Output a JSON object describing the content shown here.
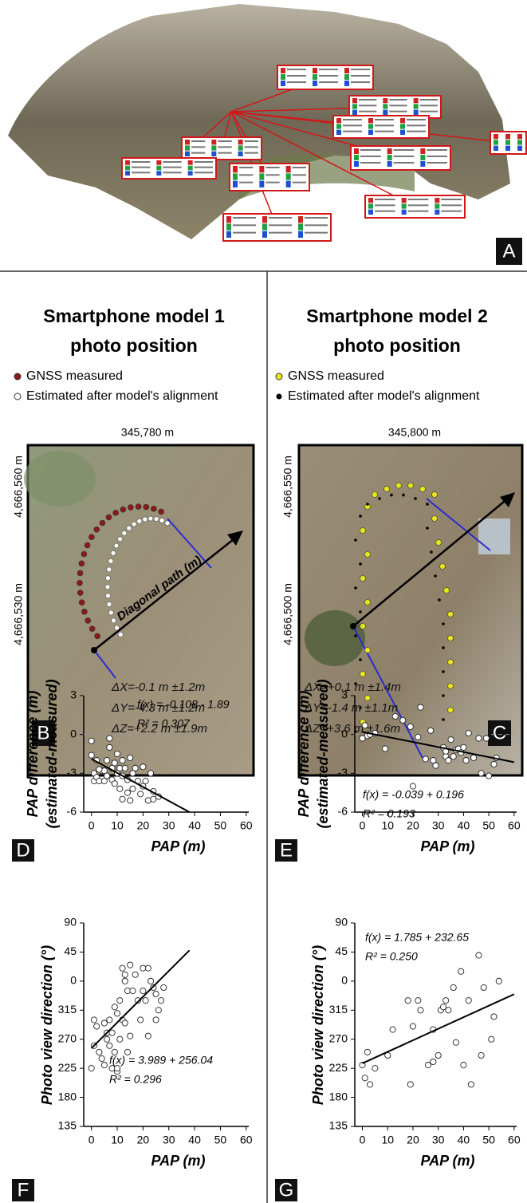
{
  "panel_a": {
    "label": "A"
  },
  "panel_b": {
    "title": [
      "Smartphone model 1",
      "photo position"
    ],
    "legend": [
      {
        "name": "GNSS measured",
        "color": "#8b1a1a"
      },
      {
        "name": "Estimated after model's alignment",
        "color": "#ffffff"
      }
    ],
    "x_label": "345,780 m",
    "y_labels": [
      "4,666,560 m",
      "4,666,530 m"
    ],
    "path_label": "Diagonal path (m)",
    "annotations": [
      "ΔX=-0.1 m ±1.2m",
      "ΔY=-4.3 m ±1.2m",
      "ΔZ=+2.2 m ±1.9m"
    ],
    "label": "B"
  },
  "panel_c": {
    "title": [
      "Smartphone model 2",
      "photo position"
    ],
    "legend": [
      {
        "name": "GNSS measured",
        "color": "#e6e619"
      },
      {
        "name": "Estimated after model's alignment",
        "color": "#000000"
      }
    ],
    "x_label": "345,800 m",
    "y_labels": [
      "4,666,550 m",
      "4,666,500 m"
    ],
    "annotations": [
      "ΔX=+0.1 m ±1.4m",
      "ΔY=-1.4 m ±1.1m",
      "ΔZ=+3.6 m ±1.6m"
    ],
    "label": "C"
  },
  "chart_data": [
    {
      "type": "scatter",
      "panel_label": "D",
      "x": [
        0,
        0,
        1,
        1,
        2,
        2,
        3,
        4,
        5,
        6,
        6,
        7,
        7,
        8,
        8,
        9,
        9,
        10,
        10,
        11,
        11,
        12,
        12,
        13,
        14,
        14,
        15,
        15,
        16,
        16,
        17,
        18,
        19,
        20,
        20,
        21,
        22,
        23,
        24,
        24,
        26,
        12,
        5,
        3
      ],
      "y": [
        -0.5,
        -1.6,
        -3.0,
        -3.6,
        -2.0,
        -3.3,
        -3.6,
        -2.8,
        -3.6,
        -3.2,
        -2.0,
        -0.3,
        -1.0,
        -2.6,
        -3.5,
        -2.2,
        -3.8,
        -1.5,
        -3.0,
        -2.6,
        -4.2,
        -3.2,
        -5.0,
        -2.6,
        -3.5,
        -4.5,
        -1.8,
        -5.1,
        -3.0,
        -4.2,
        -2.6,
        -3.6,
        -4.6,
        -2.5,
        -4.0,
        -3.6,
        -5.1,
        -3.0,
        -4.4,
        -5.0,
        -4.8,
        -2.0,
        -2.8,
        -2.7
      ],
      "xlim": [
        -3,
        61
      ],
      "ylim": [
        -6,
        3
      ],
      "xticks": [
        0,
        10,
        20,
        30,
        40,
        50,
        60
      ],
      "yticks": [
        -6,
        -3,
        0,
        3
      ],
      "xlabel": "PAP (m)",
      "ylabel": [
        "PAP difference (m)",
        "(estimated-measured)"
      ],
      "equation": "f(x) = -0.108 - 1.89",
      "r_squared": "R² = 0.307",
      "trend_line": {
        "x": [
          0,
          38
        ],
        "y": [
          -1.89,
          -6
        ]
      },
      "reference_line": 0,
      "marker_color": "#ffffff",
      "line_color": "#000000"
    },
    {
      "type": "scatter",
      "panel_label": "E",
      "x": [
        0,
        1,
        2,
        3,
        5,
        9,
        13,
        16,
        19,
        20,
        22,
        23,
        25,
        27,
        28,
        29,
        32,
        33,
        33,
        34,
        35,
        36,
        37,
        38,
        39,
        40,
        41,
        42,
        44,
        46,
        47,
        49,
        50,
        52,
        53
      ],
      "y": [
        -0.3,
        0.7,
        -0.1,
        0.0,
        0.1,
        -1.1,
        1.4,
        1.1,
        0.6,
        -4.0,
        -0.2,
        2.1,
        -1.9,
        0.3,
        -2.0,
        -2.4,
        -1.0,
        -1.7,
        -1.3,
        -2.0,
        -0.4,
        -1.7,
        -1.2,
        -1.1,
        -1.4,
        -1.0,
        -2.0,
        0.1,
        -1.8,
        -0.3,
        -3.0,
        -0.3,
        -3.2,
        -2.3,
        -1.8
      ],
      "xlim": [
        -3,
        61
      ],
      "ylim": [
        -6,
        3
      ],
      "xticks": [
        0,
        10,
        20,
        30,
        40,
        50,
        60
      ],
      "yticks": [
        -6,
        -3,
        0,
        3
      ],
      "xlabel": "PAP (m)",
      "ylabel": [
        "PAP difference (m)",
        "(estimated-measured)"
      ],
      "equation": "f(x) = -0.039 + 0.196",
      "r_squared": "R² = 0.193",
      "trend_line": {
        "x": [
          0,
          60
        ],
        "y": [
          0.196,
          -2.14
        ]
      },
      "reference_line": 0,
      "marker_color": "#ffffff",
      "line_color": "#000000"
    },
    {
      "type": "scatter",
      "panel_label": "F",
      "x": [
        0,
        1,
        1,
        2,
        3,
        4,
        5,
        5,
        6,
        6,
        7,
        7,
        8,
        8,
        9,
        9,
        10,
        10,
        10,
        11,
        11,
        12,
        12,
        13,
        13,
        14,
        14,
        15,
        15,
        16,
        17,
        18,
        19,
        20,
        20,
        21,
        22,
        22,
        23,
        24,
        25,
        25,
        26,
        27,
        28,
        13
      ],
      "y": [
        225,
        300,
        260,
        290,
        250,
        240,
        230,
        295,
        280,
        270,
        260,
        300,
        225,
        280,
        250,
        320,
        220,
        310,
        225,
        330,
        270,
        380,
        300,
        370,
        295,
        345,
        250,
        385,
        275,
        345,
        370,
        330,
        300,
        380,
        345,
        330,
        380,
        275,
        360,
        350,
        300,
        340,
        315,
        330,
        350,
        360
      ],
      "xlim": [
        -3,
        61
      ],
      "ylim": [
        135,
        450
      ],
      "xticks": [
        0,
        10,
        20,
        30,
        40,
        50,
        60
      ],
      "yticks": [
        135,
        180,
        225,
        270,
        315,
        {
          "value": 360,
          "label": "0"
        },
        {
          "value": 405,
          "label": "45"
        },
        {
          "value": 450,
          "label": "90"
        }
      ],
      "xlabel": "PAP (m)",
      "ylabel": [
        "Photo view direction (°)"
      ],
      "equation": "f(x) = 3.989 + 256.04",
      "r_squared": "R² = 0.296",
      "trend_line": {
        "x": [
          0,
          38
        ],
        "y": [
          256.04,
          407.6
        ]
      },
      "marker_color": "#ffffff",
      "line_color": "#000000"
    },
    {
      "type": "scatter",
      "panel_label": "G",
      "x": [
        0,
        1,
        2,
        3,
        5,
        10,
        12,
        18,
        19,
        20,
        22,
        23,
        26,
        28,
        28,
        30,
        31,
        32,
        33,
        34,
        36,
        37,
        39,
        40,
        42,
        43,
        46,
        47,
        48,
        51,
        52,
        54
      ],
      "y": [
        230,
        210,
        250,
        200,
        225,
        245,
        285,
        330,
        200,
        290,
        330,
        315,
        230,
        285,
        235,
        245,
        315,
        320,
        330,
        315,
        350,
        265,
        375,
        230,
        330,
        200,
        400,
        245,
        350,
        270,
        305,
        360
      ],
      "xlim": [
        -3,
        61
      ],
      "ylim": [
        135,
        450
      ],
      "xticks": [
        0,
        10,
        20,
        30,
        40,
        50,
        60
      ],
      "yticks": [
        135,
        180,
        225,
        270,
        315,
        {
          "value": 360,
          "label": "0"
        },
        {
          "value": 405,
          "label": "45"
        },
        {
          "value": 450,
          "label": "90"
        }
      ],
      "xlabel": "PAP (m)",
      "ylabel": [
        "Photo view direction (°)"
      ],
      "equation": "f(x) = 1.785 + 232.65",
      "r_squared": "R² = 0.250",
      "trend_line": {
        "x": [
          0,
          60
        ],
        "y": [
          232.65,
          339.75
        ]
      },
      "marker_color": "#ffffff",
      "line_color": "#000000"
    }
  ]
}
